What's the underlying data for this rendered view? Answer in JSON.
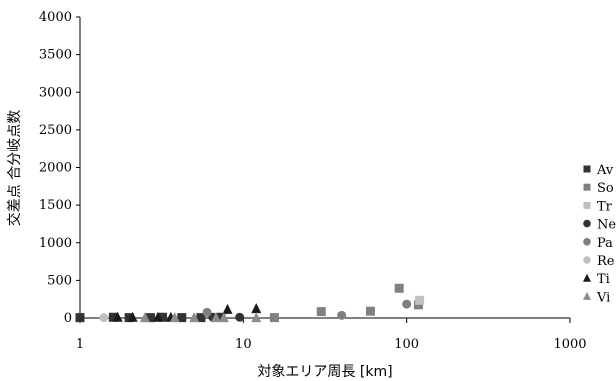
{
  "chart_data": {
    "type": "scatter",
    "title": "",
    "xlabel": "対象エリア周長 [km]",
    "ylabel": "交差点 合分岐点数",
    "x_scale": "log",
    "xlim": [
      1,
      1000
    ],
    "ylim": [
      0,
      4000
    ],
    "x_ticks": [
      "1",
      "10",
      "100",
      "1000"
    ],
    "y_ticks": [
      "0",
      "500",
      "1000",
      "1500",
      "2000",
      "2500",
      "3000",
      "3500",
      "4000"
    ],
    "grid": false,
    "legend_position": "right",
    "series": [
      {
        "name": "Av",
        "marker": "square",
        "color": "#333333",
        "points": [
          [
            1.0,
            5
          ],
          [
            1.6,
            10
          ],
          [
            2.0,
            5
          ],
          [
            2.7,
            5
          ],
          [
            3.2,
            10
          ],
          [
            4.2,
            5
          ],
          [
            5.5,
            5
          ],
          [
            7.3,
            10
          ]
        ]
      },
      {
        "name": "So",
        "marker": "square",
        "color": "#808080",
        "points": [
          [
            15.5,
            5
          ],
          [
            30,
            85
          ],
          [
            60,
            90
          ],
          [
            90,
            395
          ],
          [
            118,
            175
          ]
        ]
      },
      {
        "name": "Tr",
        "marker": "square",
        "color": "#c0c0c0",
        "points": [
          [
            120,
            235
          ]
        ]
      },
      {
        "name": "Ne",
        "marker": "circle",
        "color": "#333333",
        "points": [
          [
            6.5,
            10
          ],
          [
            9.5,
            10
          ]
        ]
      },
      {
        "name": "Pa",
        "marker": "circle",
        "color": "#7f7f7f",
        "points": [
          [
            6.0,
            75
          ],
          [
            40,
            35
          ],
          [
            100,
            185
          ]
        ]
      },
      {
        "name": "Re",
        "marker": "circle",
        "color": "#bfbfbf",
        "points": [
          [
            1.4,
            5
          ]
        ]
      },
      {
        "name": "Ti",
        "marker": "triangle",
        "color": "#1a1a1a",
        "points": [
          [
            1.7,
            10
          ],
          [
            2.1,
            10
          ],
          [
            3.0,
            10
          ],
          [
            3.6,
            10
          ],
          [
            8.0,
            115
          ],
          [
            12.0,
            125
          ]
        ]
      },
      {
        "name": "Vi",
        "marker": "triangle",
        "color": "#8c8c8c",
        "points": [
          [
            2.5,
            5
          ],
          [
            3.8,
            5
          ],
          [
            5.0,
            5
          ],
          [
            6.8,
            5
          ],
          [
            7.6,
            5
          ],
          [
            12.0,
            5
          ]
        ]
      }
    ]
  }
}
